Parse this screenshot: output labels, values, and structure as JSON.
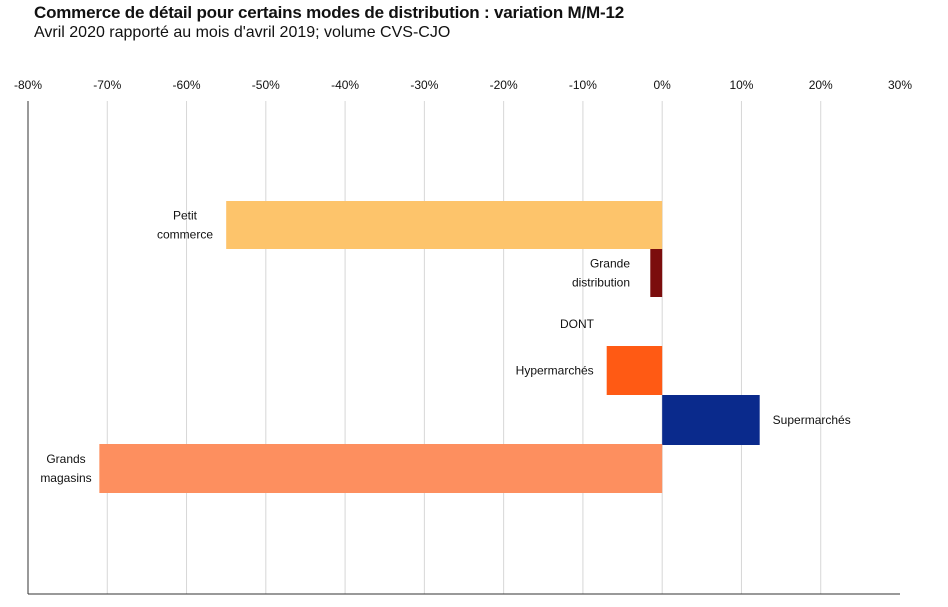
{
  "chart_data": {
    "type": "bar",
    "orientation": "horizontal",
    "title": "Commerce de détail pour certains modes de distribution : variation M/M-12",
    "subtitle": "Avril 2020 rapporté au mois d'avril 2019; volume CVS-CJO",
    "xlim": [
      -80,
      30
    ],
    "xticks": [
      -80,
      -70,
      -60,
      -50,
      -40,
      -30,
      -20,
      -10,
      0,
      10,
      20,
      30
    ],
    "xtick_labels": [
      "-80%",
      "-70%",
      "-60%",
      "-50%",
      "-40%",
      "-30%",
      "-20%",
      "-10%",
      "0%",
      "10%",
      "20%",
      "30%"
    ],
    "grid": true,
    "categories": [
      {
        "name": "Petit commerce",
        "label_lines": [
          "Petit",
          "commerce"
        ],
        "value": -55,
        "color": "#fdc46b"
      },
      {
        "name": "Grande distribution",
        "label_lines": [
          "Grande",
          "distribution"
        ],
        "value": -1.5,
        "color": "#7b0d0d"
      },
      {
        "name": "DONT",
        "label_lines": [
          "DONT"
        ],
        "value": null,
        "color": null
      },
      {
        "name": "Hypermarchés",
        "label_lines": [
          "Hypermarchés"
        ],
        "value": -7,
        "color": "#ff5a14"
      },
      {
        "name": "Supermarchés",
        "label_lines": [
          "Supermarchés"
        ],
        "value": 12.3,
        "color": "#0a2a8c"
      },
      {
        "name": "Grands magasins",
        "label_lines": [
          "Grands",
          "magasins"
        ],
        "value": -71,
        "color": "#fd8f5f"
      }
    ]
  }
}
